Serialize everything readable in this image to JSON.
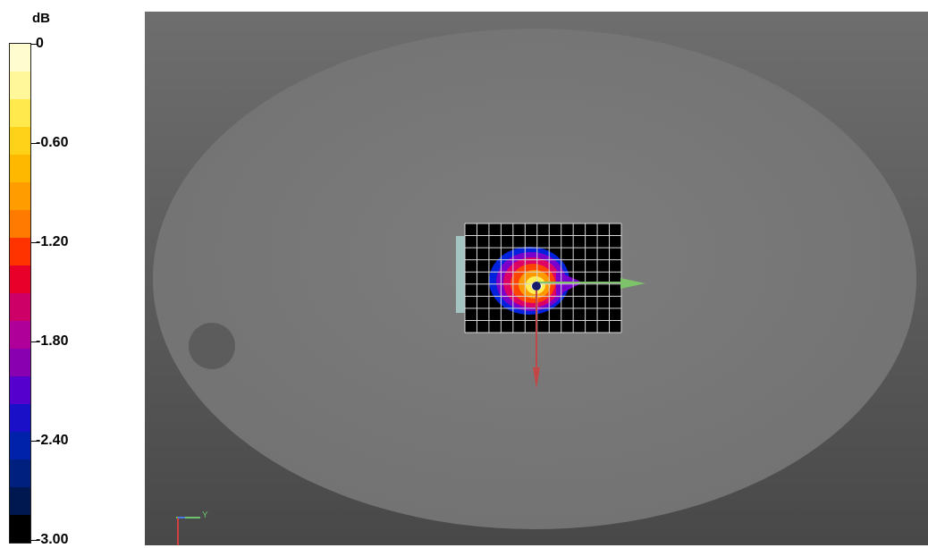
{
  "legend": {
    "unit": "dB",
    "ticks": [
      {
        "label": "0",
        "value": 0
      },
      {
        "label": "-0.60",
        "value": -0.6
      },
      {
        "label": "-1.20",
        "value": -1.2
      },
      {
        "label": "-1.80",
        "value": -1.8
      },
      {
        "label": "-2.40",
        "value": -2.4
      },
      {
        "label": "-3.00",
        "value": -3.0
      }
    ],
    "colors": [
      "#fffdd0",
      "#fff79a",
      "#ffe94d",
      "#ffd21a",
      "#ffb800",
      "#ff9d00",
      "#ff7a00",
      "#ff3300",
      "#e8002a",
      "#cc0066",
      "#b0009a",
      "#8800b0",
      "#5500cc",
      "#1a10c8",
      "#0022aa",
      "#002080",
      "#001850",
      "#000000"
    ]
  },
  "scene": {
    "axis_y_label": "Y",
    "field_colors": [
      "#0022dd",
      "#7a00cc",
      "#dd0066",
      "#ff4400",
      "#ff9900",
      "#ffee55",
      "#ffffee"
    ]
  }
}
